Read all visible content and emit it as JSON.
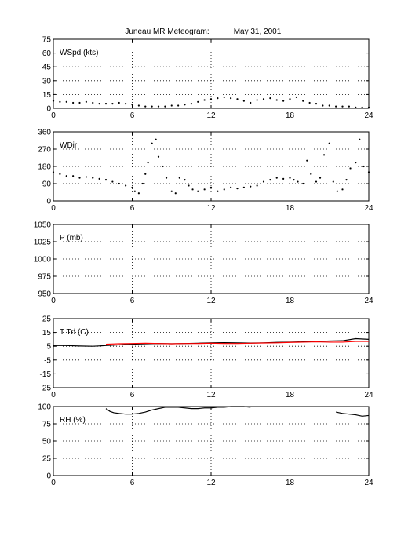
{
  "title": "Juneau MR Meteogram:",
  "date": "May 31, 2001",
  "chart_data": [
    {
      "type": "scatter",
      "label": "WSpd (kts)",
      "xlim": [
        0,
        24
      ],
      "ylim": [
        0,
        75
      ],
      "xticks": [
        0,
        6,
        12,
        18,
        24
      ],
      "yticks": [
        0,
        15,
        30,
        45,
        60,
        75
      ],
      "grid": true,
      "series": [
        {
          "color": "#000000",
          "x": [
            0,
            0.5,
            1,
            1.5,
            2,
            2.5,
            3,
            3.5,
            4,
            4.5,
            5,
            5.5,
            6,
            6.5,
            7,
            7.5,
            8,
            8.5,
            9,
            9.5,
            10,
            10.5,
            11,
            11.5,
            12,
            12.5,
            13,
            13.5,
            14,
            14.5,
            15,
            15.5,
            16,
            16.5,
            17,
            17.5,
            18,
            18.5,
            19,
            19.5,
            20,
            20.5,
            21,
            21.5,
            22,
            22.5,
            23,
            23.5,
            24
          ],
          "y": [
            8,
            7,
            7,
            6,
            6,
            7,
            6,
            5,
            5,
            5,
            6,
            5,
            4,
            3,
            2,
            2,
            2,
            2,
            3,
            3,
            4,
            5,
            7,
            9,
            10,
            11,
            12,
            11,
            10,
            8,
            6,
            9,
            10,
            11,
            9,
            8,
            10,
            12,
            8,
            6,
            5,
            3,
            3,
            2,
            2,
            2,
            1,
            1,
            1
          ]
        }
      ]
    },
    {
      "type": "scatter",
      "label": "WDir",
      "xlim": [
        0,
        24
      ],
      "ylim": [
        0,
        360
      ],
      "xticks": [
        0,
        6,
        12,
        18,
        24
      ],
      "yticks": [
        0,
        90,
        180,
        270,
        360
      ],
      "grid": true,
      "series": [
        {
          "color": "#000000",
          "x": [
            0,
            0.5,
            1,
            1.5,
            2,
            2.5,
            3,
            3.5,
            4,
            4.5,
            5,
            5.5,
            6,
            6.2,
            6.5,
            6.8,
            7,
            7.2,
            7.5,
            7.8,
            8,
            8.3,
            8.6,
            9,
            9.3,
            9.6,
            10,
            10.3,
            10.6,
            11,
            11.5,
            12,
            12.5,
            13,
            13.5,
            14,
            14.5,
            15,
            15.5,
            16,
            16.5,
            17,
            17.5,
            18,
            18.3,
            18.6,
            19,
            19.3,
            19.6,
            20,
            20.3,
            20.6,
            21,
            21.3,
            21.6,
            22,
            22.3,
            22.6,
            23,
            23.3,
            23.6,
            24
          ],
          "y": [
            150,
            140,
            130,
            130,
            120,
            125,
            120,
            115,
            110,
            100,
            90,
            80,
            70,
            50,
            40,
            90,
            140,
            200,
            300,
            320,
            230,
            180,
            120,
            50,
            40,
            120,
            110,
            80,
            60,
            50,
            60,
            70,
            50,
            60,
            70,
            65,
            70,
            75,
            80,
            100,
            110,
            120,
            115,
            120,
            110,
            100,
            90,
            210,
            140,
            100,
            120,
            240,
            300,
            100,
            50,
            60,
            110,
            170,
            200,
            320,
            180,
            150
          ]
        }
      ]
    },
    {
      "type": "line",
      "label": "P (mb)",
      "xlim": [
        0,
        24
      ],
      "ylim": [
        950,
        1050
      ],
      "xticks": [
        0,
        6,
        12,
        18,
        24
      ],
      "yticks": [
        950,
        975,
        1000,
        1025,
        1050
      ],
      "grid": true,
      "series": []
    },
    {
      "type": "line",
      "label": "T Td (C)",
      "xlim": [
        0,
        24
      ],
      "ylim": [
        -25,
        25
      ],
      "xticks": [
        0,
        6,
        12,
        18,
        24
      ],
      "yticks": [
        -25,
        -15,
        -5,
        5,
        15,
        25
      ],
      "grid": true,
      "series": [
        {
          "color": "#000000",
          "x": [
            0,
            1,
            2,
            3,
            4,
            5,
            6,
            7,
            8,
            9,
            10,
            11,
            12,
            13,
            14,
            15,
            16,
            17,
            18,
            19,
            20,
            21,
            22,
            23,
            24
          ],
          "y": [
            5.5,
            5.5,
            5.2,
            5.0,
            5.5,
            6.0,
            6.5,
            6.8,
            7.0,
            6.8,
            7.0,
            7.2,
            7.5,
            7.6,
            7.5,
            7.3,
            7.5,
            7.8,
            8.0,
            8.2,
            8.5,
            8.8,
            9.0,
            10.5,
            10.0
          ]
        },
        {
          "color": "#ff0000",
          "x": [
            4,
            5,
            6,
            7,
            8,
            9,
            10,
            11,
            12,
            13,
            14,
            15,
            16,
            17,
            18,
            19,
            20,
            21,
            22,
            23,
            24
          ],
          "y": [
            6.5,
            6.8,
            7.0,
            7.2,
            7.0,
            6.8,
            7.0,
            7.0,
            7.2,
            7.0,
            7.0,
            7.2,
            7.4,
            7.5,
            7.8,
            8.0,
            8.2,
            8.0,
            8.0,
            8.5,
            8.5
          ]
        }
      ]
    },
    {
      "type": "line",
      "label": "RH (%)",
      "xlim": [
        0,
        24
      ],
      "ylim": [
        0,
        100
      ],
      "xticks": [
        0,
        6,
        12,
        18,
        24
      ],
      "yticks": [
        0,
        25,
        50,
        75,
        100
      ],
      "grid": true,
      "series": [
        {
          "color": "#000000",
          "segments": [
            {
              "x": [
                4.0,
                4.3,
                4.6,
                5.0,
                5.5,
                6.0,
                6.5,
                7.0,
                7.5,
                8.0,
                8.5,
                9.0,
                9.5,
                10.0
              ],
              "y": [
                97,
                93,
                91,
                90,
                89,
                89,
                90,
                92,
                95,
                97,
                99,
                99,
                99,
                98
              ]
            },
            {
              "x": [
                10.0,
                10.5,
                11.0,
                11.5,
                12.0,
                12.5,
                13.0,
                13.5,
                14.0,
                14.5,
                15.0
              ],
              "y": [
                98,
                97,
                97,
                98,
                98,
                99,
                99,
                100,
                100,
                100,
                99
              ]
            },
            {
              "x": [
                21.5,
                22.0,
                22.5,
                23.0,
                23.5,
                24.0
              ],
              "y": [
                92,
                90,
                89,
                88,
                86,
                87
              ]
            }
          ]
        }
      ]
    }
  ]
}
